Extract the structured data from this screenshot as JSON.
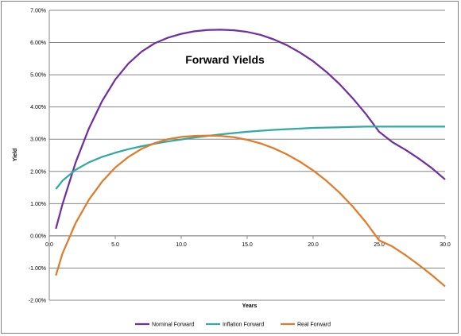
{
  "chart_data": {
    "type": "line",
    "title": "Forward Yields",
    "xlabel": "Years",
    "ylabel": "Yield",
    "xlim": [
      0,
      30
    ],
    "ylim": [
      -2,
      7
    ],
    "x_ticks": [
      "0.0",
      "5.0",
      "10.0",
      "15.0",
      "20.0",
      "25.0",
      "30.0"
    ],
    "y_ticks": [
      "-2.00%",
      "-1.00%",
      "0.00%",
      "1.00%",
      "2.00%",
      "3.00%",
      "4.00%",
      "5.00%",
      "6.00%",
      "7.00%"
    ],
    "grid": "horizontal",
    "legend_position": "bottom",
    "x": [
      0.5,
      1,
      2,
      3,
      4,
      5,
      6,
      7,
      8,
      9,
      10,
      11,
      12,
      13,
      14,
      15,
      16,
      17,
      18,
      19,
      20,
      21,
      22,
      23,
      24,
      25,
      26,
      27,
      28,
      29,
      30
    ],
    "series": [
      {
        "name": "Nominal Forward",
        "color": "#7030a0",
        "values": [
          0.22,
          0.98,
          2.28,
          3.33,
          4.18,
          4.85,
          5.35,
          5.72,
          5.98,
          6.15,
          6.27,
          6.35,
          6.39,
          6.4,
          6.38,
          6.33,
          6.24,
          6.1,
          5.92,
          5.69,
          5.42,
          5.09,
          4.71,
          4.27,
          3.78,
          3.23,
          2.91,
          2.67,
          2.4,
          2.1,
          1.75
        ]
      },
      {
        "name": "Inflation Forward",
        "color": "#31a9a4",
        "values": [
          1.45,
          1.71,
          2.05,
          2.28,
          2.45,
          2.58,
          2.69,
          2.78,
          2.86,
          2.93,
          2.99,
          3.05,
          3.1,
          3.15,
          3.19,
          3.23,
          3.26,
          3.29,
          3.31,
          3.33,
          3.35,
          3.36,
          3.37,
          3.38,
          3.39,
          3.39,
          3.39,
          3.39,
          3.39,
          3.39,
          3.39
        ]
      },
      {
        "name": "Real Forward",
        "color": "#e07b2a",
        "values": [
          -1.23,
          -0.55,
          0.4,
          1.12,
          1.68,
          2.12,
          2.45,
          2.7,
          2.88,
          3.0,
          3.07,
          3.1,
          3.11,
          3.1,
          3.06,
          2.98,
          2.87,
          2.72,
          2.53,
          2.3,
          2.03,
          1.71,
          1.34,
          0.91,
          0.42,
          -0.14,
          -0.33,
          -0.6,
          -0.9,
          -1.22,
          -1.57
        ]
      }
    ]
  }
}
